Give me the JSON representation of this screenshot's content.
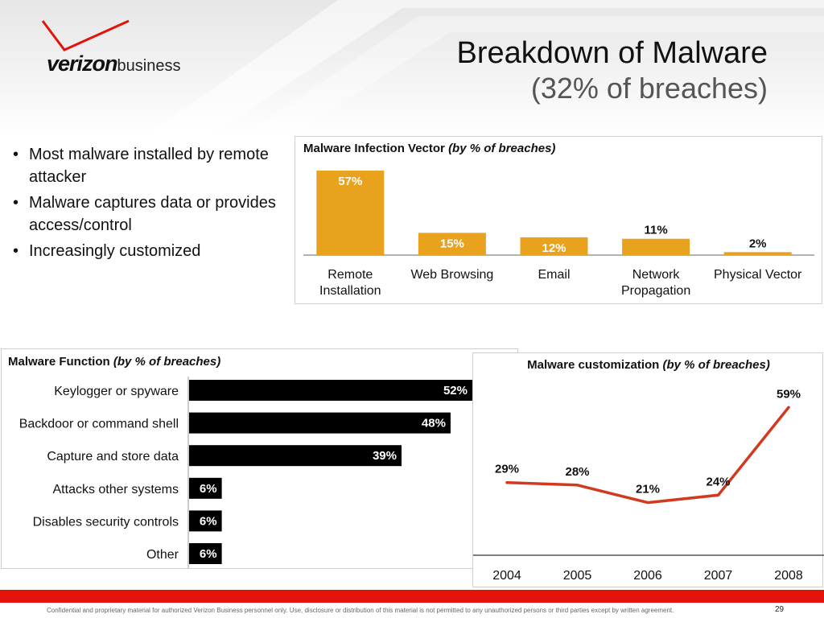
{
  "header": {
    "logo_wordmark": "verizon",
    "logo_suffix": "business",
    "title": "Breakdown of Malware",
    "subtitle": "(32% of breaches)"
  },
  "colors": {
    "vector_bar": "#E8A21E",
    "function_bar": "#000000",
    "custom_line": "#D23A1F",
    "brand_red": "#E3120B"
  },
  "bullets": [
    "Most malware installed by remote attacker",
    "Malware captures data or provides access/control",
    "Increasingly customized"
  ],
  "footer": {
    "disclaimer": "Confidential and proprietary material for authorized Verizon Business personnel only. Use, disclosure or distribution of this material is not permitted to any unauthorized persons or third parties except by written agreement.",
    "page_number": "29"
  },
  "chart_data": [
    {
      "type": "bar",
      "title": "Malware Infection Vector",
      "title_suffix": "(by % of breaches)",
      "categories": [
        "Remote Installation",
        "Web Browsing",
        "Email",
        "Network Propagation",
        "Physical Vector"
      ],
      "category_lines": [
        [
          "Remote",
          "Installation"
        ],
        [
          "Web Browsing"
        ],
        [
          "Email"
        ],
        [
          "Network",
          "Propagation"
        ],
        [
          "Physical Vector"
        ]
      ],
      "values": [
        57,
        15,
        12,
        11,
        2
      ],
      "labels": [
        "57%",
        "15%",
        "12%",
        "11%",
        "2%"
      ],
      "ylim": [
        0,
        57
      ],
      "grid": false,
      "legend": "none"
    },
    {
      "type": "bar",
      "orientation": "horizontal",
      "title": "Malware Function",
      "title_suffix": "(by % of breaches)",
      "categories": [
        "Keylogger or spyware",
        "Backdoor or command shell",
        "Capture and store data",
        "Attacks other systems",
        "Disables security controls",
        "Other"
      ],
      "values": [
        52,
        48,
        39,
        6,
        6,
        6
      ],
      "labels": [
        "52%",
        "48%",
        "39%",
        "6%",
        "6%",
        "6%"
      ],
      "xlim": [
        0,
        52
      ],
      "grid": false,
      "legend": "none"
    },
    {
      "type": "line",
      "title": "Malware customization",
      "title_suffix": "(by % of breaches)",
      "x": [
        "2004",
        "2005",
        "2006",
        "2007",
        "2008"
      ],
      "values": [
        29,
        28,
        21,
        24,
        59
      ],
      "labels": [
        "29%",
        "28%",
        "21%",
        "24%",
        "59%"
      ],
      "ylim": [
        0,
        70
      ],
      "grid": false,
      "legend": "none"
    }
  ]
}
